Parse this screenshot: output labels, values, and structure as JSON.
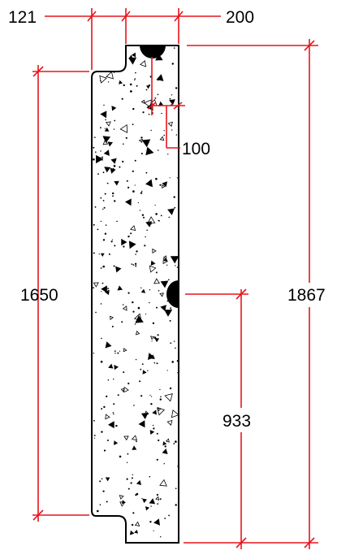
{
  "drawing": {
    "colors": {
      "dimension": "#e8141c",
      "outline": "#000000",
      "background": "#ffffff"
    },
    "dimensions": {
      "top_left_width": "121",
      "top_right_width": "200",
      "groove_depth": "100",
      "left_height": "1650",
      "total_height": "1867",
      "mid_height": "933"
    }
  }
}
